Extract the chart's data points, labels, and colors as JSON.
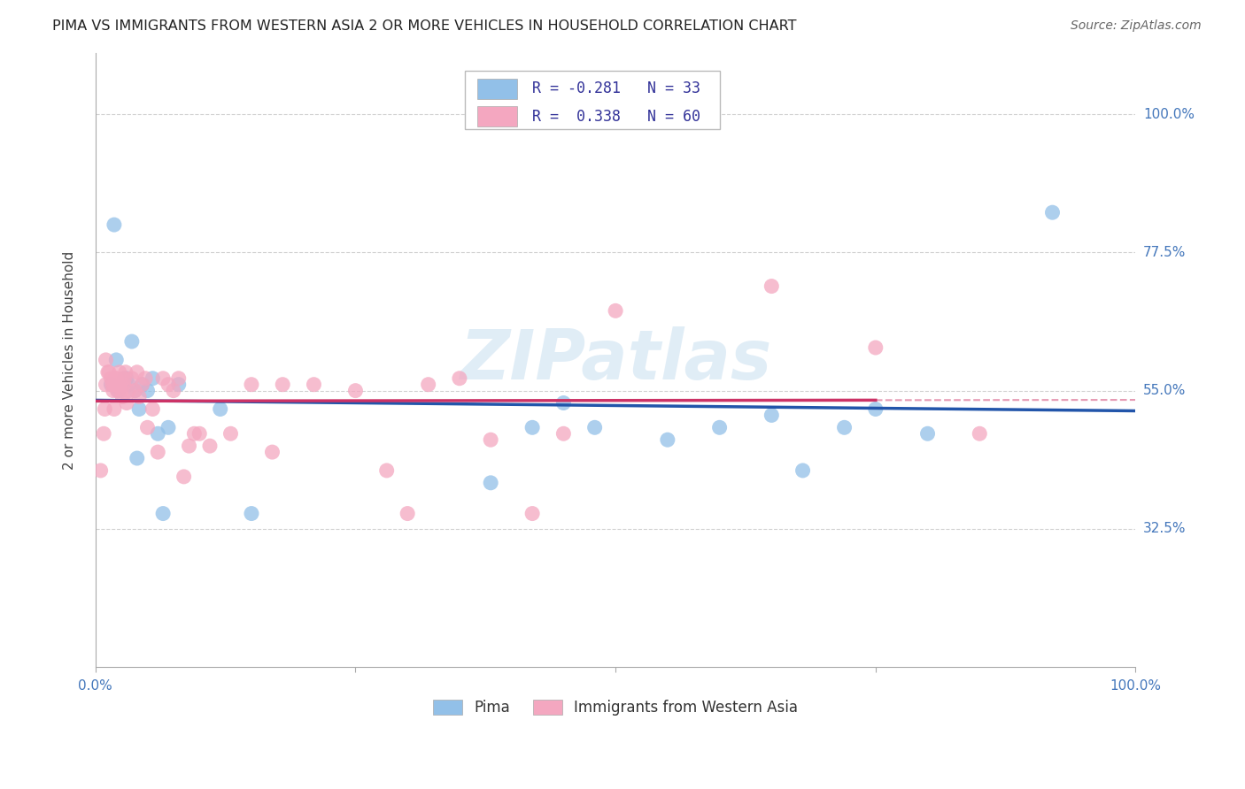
{
  "title": "PIMA VS IMMIGRANTS FROM WESTERN ASIA 2 OR MORE VEHICLES IN HOUSEHOLD CORRELATION CHART",
  "source": "Source: ZipAtlas.com",
  "ylabel": "2 or more Vehicles in Household",
  "legend_label1": "Pima",
  "legend_label2": "Immigrants from Western Asia",
  "R1": -0.281,
  "N1": 33,
  "R2": 0.338,
  "N2": 60,
  "color_blue": "#92c0e8",
  "color_pink": "#f4a7c0",
  "line_blue": "#2255aa",
  "line_pink": "#cc3366",
  "background": "#ffffff",
  "grid_color": "#cccccc",
  "watermark": "ZIPatlas",
  "pima_x": [
    1.5,
    1.8,
    2.0,
    2.2,
    2.5,
    2.8,
    3.0,
    3.2,
    3.5,
    3.8,
    4.0,
    4.2,
    4.5,
    5.0,
    5.5,
    6.0,
    6.5,
    7.0,
    8.0,
    12.0,
    15.0,
    38.0,
    42.0,
    45.0,
    48.0,
    55.0,
    60.0,
    65.0,
    68.0,
    72.0,
    75.0,
    80.0,
    92.0
  ],
  "pima_y": [
    56.0,
    82.0,
    60.0,
    55.0,
    56.0,
    57.0,
    57.0,
    56.0,
    63.0,
    55.0,
    44.0,
    52.0,
    56.0,
    55.0,
    57.0,
    48.0,
    35.0,
    49.0,
    56.0,
    52.0,
    35.0,
    40.0,
    49.0,
    53.0,
    49.0,
    47.0,
    49.0,
    51.0,
    42.0,
    49.0,
    52.0,
    48.0,
    84.0
  ],
  "imm_x": [
    0.5,
    0.8,
    0.9,
    1.0,
    1.0,
    1.2,
    1.3,
    1.5,
    1.6,
    1.7,
    1.8,
    1.8,
    1.9,
    2.0,
    2.1,
    2.2,
    2.3,
    2.4,
    2.5,
    2.6,
    2.7,
    2.8,
    2.9,
    3.0,
    3.2,
    3.5,
    3.8,
    4.0,
    4.2,
    4.5,
    4.8,
    5.0,
    5.5,
    6.0,
    6.5,
    7.0,
    7.5,
    8.0,
    8.5,
    9.0,
    9.5,
    10.0,
    11.0,
    13.0,
    15.0,
    17.0,
    18.0,
    21.0,
    25.0,
    28.0,
    30.0,
    32.0,
    35.0,
    38.0,
    42.0,
    45.0,
    50.0,
    65.0,
    75.0,
    85.0
  ],
  "imm_y": [
    42.0,
    48.0,
    52.0,
    56.0,
    60.0,
    58.0,
    58.0,
    57.0,
    56.0,
    55.0,
    52.0,
    56.0,
    57.0,
    57.0,
    55.0,
    56.0,
    58.0,
    56.0,
    55.0,
    54.0,
    56.0,
    57.0,
    58.0,
    53.0,
    55.0,
    57.0,
    55.0,
    58.0,
    54.0,
    56.0,
    57.0,
    49.0,
    52.0,
    45.0,
    57.0,
    56.0,
    55.0,
    57.0,
    41.0,
    46.0,
    48.0,
    48.0,
    46.0,
    48.0,
    56.0,
    45.0,
    56.0,
    56.0,
    55.0,
    42.0,
    35.0,
    56.0,
    57.0,
    47.0,
    35.0,
    48.0,
    68.0,
    72.0,
    62.0,
    48.0
  ],
  "xlim": [
    0,
    100
  ],
  "ylim": [
    10,
    110
  ],
  "yticks": [
    32.5,
    55.0,
    77.5,
    100.0
  ],
  "ytick_labels": [
    "32.5%",
    "55.0%",
    "77.5%",
    "100.0%"
  ],
  "xtick_left_label": "0.0%",
  "xtick_right_label": "100.0%"
}
